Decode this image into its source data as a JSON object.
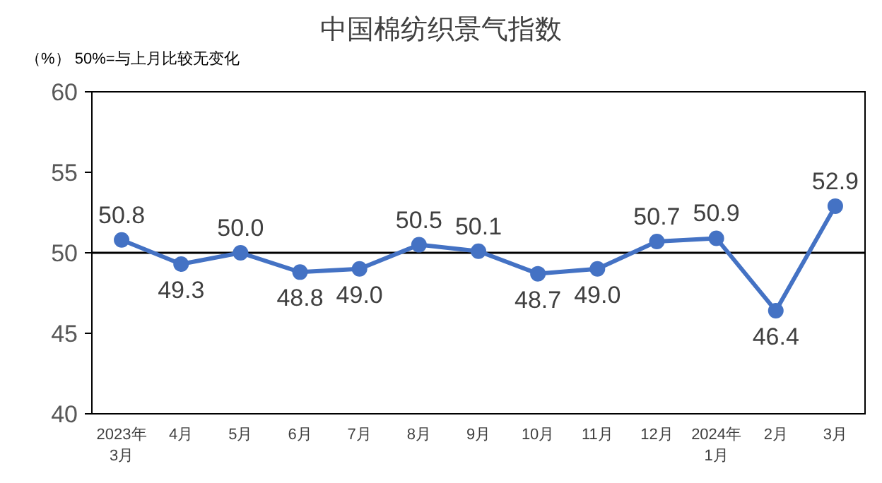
{
  "chart_data": {
    "type": "line",
    "title": "中国棉纺织景气指数",
    "annotations": [
      "（%）  50%=与上月比较无变化"
    ],
    "categories": [
      "2023年\n3月",
      "4月",
      "5月",
      "6月",
      "7月",
      "8月",
      "9月",
      "10月",
      "11月",
      "12月",
      "2024年\n1月",
      "2月",
      "3月"
    ],
    "series": [
      {
        "color": "#4472c4",
        "values": [
          50.8,
          49.3,
          50.0,
          48.8,
          49.0,
          50.5,
          50.1,
          48.7,
          49.0,
          50.7,
          50.9,
          46.4,
          52.9
        ]
      }
    ],
    "value_labels": [
      "50.8",
      "49.3",
      "50.0",
      "48.8",
      "49.0",
      "50.5",
      "50.1",
      "48.7",
      "49.0",
      "50.7",
      "50.9",
      "46.4",
      "52.9"
    ],
    "ylim": [
      40,
      60
    ],
    "yticks": [
      40,
      45,
      50,
      55,
      60
    ],
    "grid": false,
    "marker": "circle",
    "line_style": "solid",
    "ref_lines": [
      {
        "axis": "y",
        "value": 50,
        "color": "#000000"
      }
    ]
  }
}
